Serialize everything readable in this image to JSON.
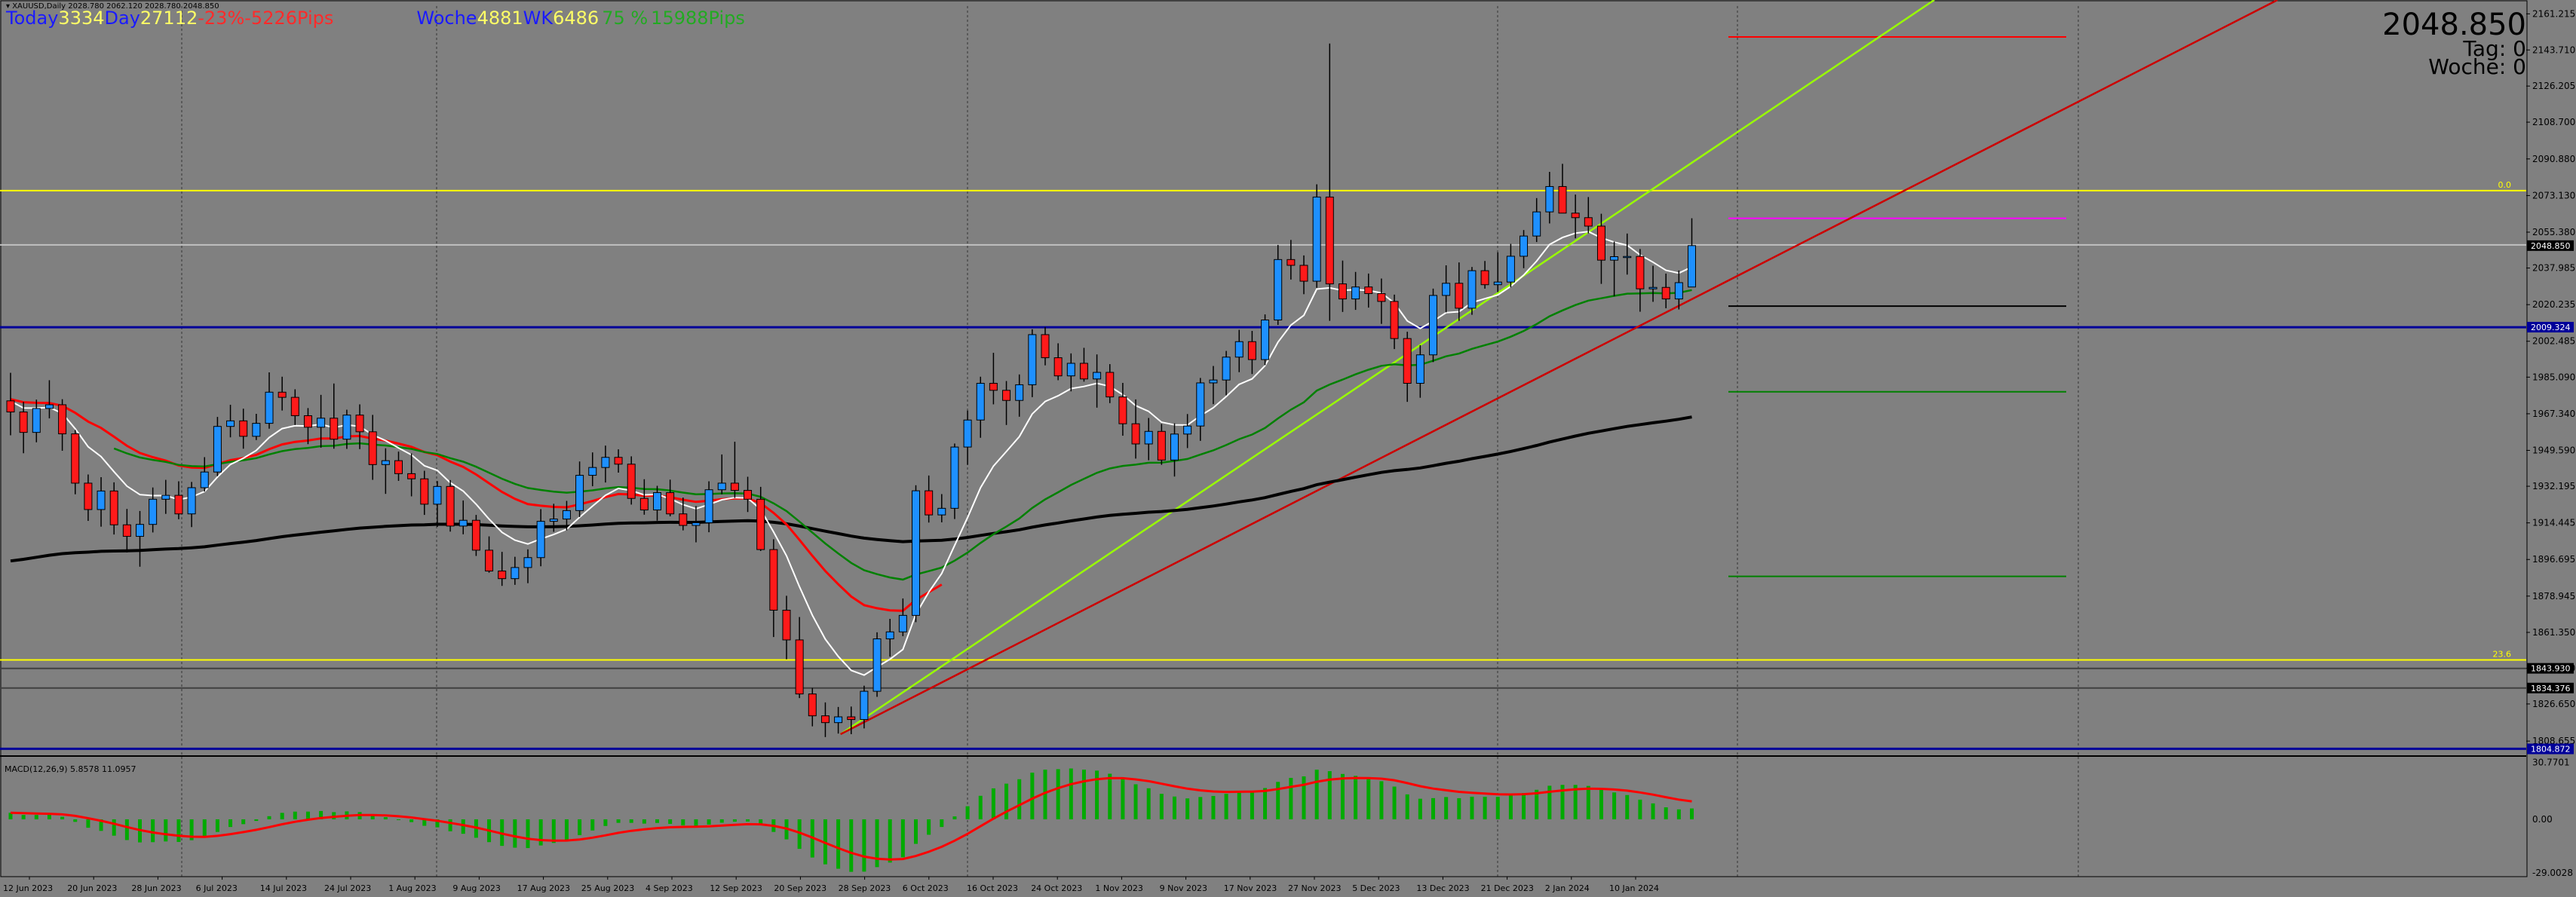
{
  "header": {
    "symbol_line": "▾ XAUUSD,Daily  2028.780 2062.120 2028.780 2048.850",
    "price_display": "2048.850",
    "tag_label": "Tag:",
    "tag_value": "0",
    "woche_label": "Woche:",
    "woche_value": "0",
    "stats": [
      {
        "text": "Today",
        "color": "#1a1aff"
      },
      {
        "text": "3334",
        "color": "#ffff66"
      },
      {
        "text": "Day",
        "color": "#1a1aff"
      },
      {
        "text": "27112",
        "color": "#ffff66"
      },
      {
        "text": "-23%",
        "color": "#ff2a2a"
      },
      {
        "text": "-5226",
        "color": "#ff2a2a"
      },
      {
        "text": "Pips",
        "color": "#ff2a2a"
      },
      {
        "text": "Woche",
        "color": "#1a1aff"
      },
      {
        "text": "4881",
        "color": "#ffff66"
      },
      {
        "text": "WK",
        "color": "#1a1aff"
      },
      {
        "text": "6486",
        "color": "#ffff66"
      },
      {
        "text": "75 %",
        "color": "#22aa22"
      },
      {
        "text": "15988",
        "color": "#22aa22"
      },
      {
        "text": "Pips",
        "color": "#22aa22"
      }
    ]
  },
  "colors": {
    "background": "#808080",
    "bull": "#1e90ff",
    "bear": "#ff1a1a",
    "ema_red": "#ff0000",
    "ema_green": "#008000",
    "ema_white": "#ffffff",
    "sma_black": "#000000",
    "blue_line": "#000099",
    "yellow_line": "#ffff00",
    "trend_lime": "#99ff00",
    "trend_red": "#cc0000",
    "magenta": "#ff00ff"
  },
  "chart_data": {
    "type": "candlestick",
    "symbol": "XAUUSD",
    "timeframe": "Daily",
    "ohlc_last": {
      "open": 2028.78,
      "high": 2062.12,
      "low": 2028.78,
      "close": 2048.85
    },
    "price_axis": {
      "ylim": [
        1802.5,
        2165.0
      ],
      "ticks": [
        "2161.215",
        "2143.710",
        "2126.205",
        "2108.700",
        "2090.880",
        "2073.130",
        "2055.380",
        "2037.985",
        "2020.235",
        "2002.485",
        "1985.090",
        "1967.340",
        "1949.590",
        "1932.195",
        "1914.445",
        "1896.695",
        "1878.945",
        "1861.350",
        "1843.930",
        "1826.650",
        "1808.655"
      ],
      "labels": [
        {
          "price": 2048.85,
          "text": "2048.850",
          "bg": "#000000",
          "fg": "#ffffff"
        },
        {
          "price": 2009.324,
          "text": "2009.324",
          "bg": "#000099",
          "fg": "#ffffff"
        },
        {
          "price": 1843.93,
          "text": "1843.930",
          "bg": "#000000",
          "fg": "#ffffff"
        },
        {
          "price": 1834.376,
          "text": "1834.376",
          "bg": "#000000",
          "fg": "#ffffff"
        },
        {
          "price": 1804.872,
          "text": "1804.872",
          "bg": "#000099",
          "fg": "#ffffff"
        }
      ]
    },
    "date_labels": [
      "12 Jun 2023",
      "20 Jun 2023",
      "28 Jun 2023",
      "6 Jul 2023",
      "14 Jul 2023",
      "24 Jul 2023",
      "1 Aug 2023",
      "9 Aug 2023",
      "17 Aug 2023",
      "25 Aug 2023",
      "4 Sep 2023",
      "12 Sep 2023",
      "20 Sep 2023",
      "28 Sep 2023",
      "6 Oct 2023",
      "16 Oct 2023",
      "24 Oct 2023",
      "1 Nov 2023",
      "9 Nov 2023",
      "17 Nov 2023",
      "27 Nov 2023",
      "5 Dec 2023",
      "13 Dec 2023",
      "21 Dec 2023",
      "2 Jan 2024",
      "10 Jan 2024"
    ],
    "fib_labels": [
      {
        "price": 2075.5,
        "text": "0.0"
      },
      {
        "price": 1848.0,
        "text": "23.6"
      }
    ],
    "horizontal_lines": [
      {
        "price": 2075.5,
        "color": "#ffff00",
        "full": true
      },
      {
        "price": 2049.2,
        "color": "#c0c0c0",
        "full": true
      },
      {
        "price": 2009.3,
        "color": "#000099",
        "full": true
      },
      {
        "price": 1848.0,
        "color": "#ffff00",
        "full": true
      },
      {
        "price": 1843.9,
        "color": "#404040",
        "full": true
      },
      {
        "price": 1834.4,
        "color": "#404040",
        "full": true
      },
      {
        "price": 1804.9,
        "color": "#000099",
        "full": true
      },
      {
        "price": 2150.0,
        "color": "#ff0000",
        "x0": 2292,
        "x1": 2740
      },
      {
        "price": 2062.1,
        "color": "#ff00ff",
        "x0": 2292,
        "x1": 2740
      },
      {
        "price": 2019.5,
        "color": "#000000",
        "x0": 2292,
        "x1": 2740
      },
      {
        "price": 1978.0,
        "color": "#008000",
        "x0": 2292,
        "x1": 2740
      },
      {
        "price": 1888.5,
        "color": "#008000",
        "x0": 2292,
        "x1": 2740
      }
    ],
    "candles": [
      [
        1973.6,
        1987.2,
        1956.9,
        1968.2
      ],
      [
        1968.2,
        1973.1,
        1948.2,
        1958.3
      ],
      [
        1958.3,
        1974.2,
        1953.5,
        1969.9
      ],
      [
        1969.9,
        1983.6,
        1965.1,
        1971.7
      ],
      [
        1971.7,
        1974.4,
        1949.4,
        1957.6
      ],
      [
        1957.6,
        1959.5,
        1928.3,
        1933.7
      ],
      [
        1933.7,
        1937.9,
        1915.4,
        1920.9
      ],
      [
        1920.9,
        1936.6,
        1912.6,
        1929.9
      ],
      [
        1929.9,
        1934.1,
        1908.8,
        1913.5
      ],
      [
        1913.5,
        1921.2,
        1900.1,
        1907.9
      ],
      [
        1907.9,
        1920.2,
        1893.2,
        1913.7
      ],
      [
        1913.7,
        1931.6,
        1909.8,
        1925.9
      ],
      [
        1925.9,
        1935.3,
        1918.8,
        1927.8
      ],
      [
        1927.8,
        1934.6,
        1916.2,
        1918.8
      ],
      [
        1918.8,
        1934.3,
        1912.4,
        1931.5
      ],
      [
        1931.5,
        1946.3,
        1929.6,
        1939.1
      ],
      [
        1939.1,
        1965.8,
        1937.1,
        1961.2
      ],
      [
        1961.2,
        1971.7,
        1955.9,
        1963.9
      ],
      [
        1963.9,
        1969.8,
        1950.4,
        1956.4
      ],
      [
        1956.4,
        1967.3,
        1954.6,
        1962.7
      ],
      [
        1962.7,
        1987.4,
        1960.1,
        1977.8
      ],
      [
        1977.8,
        1985.3,
        1968.9,
        1975.3
      ],
      [
        1975.3,
        1979.2,
        1961.9,
        1966.4
      ],
      [
        1966.4,
        1970.1,
        1952.6,
        1960.8
      ],
      [
        1960.8,
        1976.5,
        1950.9,
        1965.2
      ],
      [
        1965.2,
        1982.0,
        1950.4,
        1955.0
      ],
      [
        1955.0,
        1969.3,
        1950.3,
        1966.7
      ],
      [
        1966.7,
        1971.9,
        1950.2,
        1958.6
      ],
      [
        1958.6,
        1966.8,
        1935.3,
        1942.7
      ],
      [
        1942.7,
        1950.6,
        1928.5,
        1944.6
      ],
      [
        1944.6,
        1949.0,
        1934.8,
        1938.3
      ],
      [
        1938.3,
        1948.1,
        1927.3,
        1935.8
      ],
      [
        1935.8,
        1939.7,
        1918.3,
        1923.5
      ],
      [
        1923.5,
        1934.7,
        1912.5,
        1932.1
      ],
      [
        1932.1,
        1935.2,
        1910.2,
        1912.9
      ],
      [
        1912.9,
        1925.3,
        1908.9,
        1915.7
      ],
      [
        1915.7,
        1918.3,
        1898.4,
        1901.2
      ],
      [
        1901.2,
        1907.9,
        1890.3,
        1891.1
      ],
      [
        1891.1,
        1900.4,
        1883.9,
        1887.4
      ],
      [
        1887.4,
        1898.0,
        1884.4,
        1892.8
      ],
      [
        1892.8,
        1901.6,
        1885.2,
        1897.6
      ],
      [
        1897.6,
        1921.1,
        1893.4,
        1915.2
      ],
      [
        1915.2,
        1923.7,
        1910.1,
        1916.3
      ],
      [
        1916.3,
        1925.1,
        1910.8,
        1920.4
      ],
      [
        1920.4,
        1944.2,
        1917.3,
        1937.5
      ],
      [
        1937.5,
        1948.6,
        1932.2,
        1941.3
      ],
      [
        1941.3,
        1951.9,
        1934.0,
        1946.2
      ],
      [
        1946.2,
        1950.1,
        1938.8,
        1942.9
      ],
      [
        1942.9,
        1946.7,
        1923.3,
        1926.3
      ],
      [
        1926.3,
        1935.6,
        1918.4,
        1920.7
      ],
      [
        1920.7,
        1932.4,
        1915.5,
        1929.1
      ],
      [
        1929.1,
        1935.4,
        1917.6,
        1918.8
      ],
      [
        1918.8,
        1926.7,
        1910.8,
        1913.2
      ],
      [
        1913.2,
        1922.6,
        1905.0,
        1914.5
      ],
      [
        1914.5,
        1934.6,
        1909.9,
        1930.5
      ],
      [
        1930.5,
        1947.6,
        1928.3,
        1933.7
      ],
      [
        1933.7,
        1953.8,
        1926.5,
        1930.2
      ],
      [
        1930.2,
        1936.8,
        1919.7,
        1925.9
      ],
      [
        1925.9,
        1931.9,
        1900.8,
        1901.5
      ],
      [
        1901.5,
        1906.5,
        1859.1,
        1872.1
      ],
      [
        1872.1,
        1879.1,
        1848.3,
        1857.7
      ],
      [
        1857.7,
        1868.8,
        1829.5,
        1831.5
      ],
      [
        1831.5,
        1834.4,
        1815.8,
        1820.9
      ],
      [
        1820.9,
        1827.4,
        1810.6,
        1817.6
      ],
      [
        1817.6,
        1825.2,
        1812.3,
        1820.4
      ],
      [
        1820.4,
        1825.4,
        1812.0,
        1819.1
      ],
      [
        1819.1,
        1835.5,
        1814.8,
        1832.8
      ],
      [
        1832.8,
        1861.4,
        1830.1,
        1858.2
      ],
      [
        1858.2,
        1867.9,
        1849.6,
        1861.6
      ],
      [
        1861.6,
        1877.8,
        1859.5,
        1869.6
      ],
      [
        1869.6,
        1932.7,
        1866.3,
        1930.0
      ],
      [
        1930.0,
        1937.4,
        1914.6,
        1918.3
      ],
      [
        1918.3,
        1928.4,
        1914.7,
        1921.5
      ],
      [
        1921.5,
        1952.9,
        1916.3,
        1951.2
      ],
      [
        1951.2,
        1968.9,
        1942.6,
        1964.3
      ],
      [
        1964.3,
        1985.3,
        1955.7,
        1982.1
      ],
      [
        1982.1,
        1996.9,
        1971.9,
        1978.7
      ],
      [
        1978.7,
        1983.2,
        1961.9,
        1973.8
      ],
      [
        1973.8,
        1986.4,
        1965.9,
        1981.4
      ],
      [
        1981.4,
        2008.3,
        1975.4,
        2005.7
      ],
      [
        2005.7,
        2009.4,
        1990.8,
        1994.5
      ],
      [
        1994.5,
        2001.5,
        1983.6,
        1985.7
      ],
      [
        1985.7,
        1996.6,
        1978.2,
        1991.8
      ],
      [
        1991.8,
        1999.3,
        1982.9,
        1984.2
      ],
      [
        1984.2,
        1996.1,
        1970.3,
        1987.4
      ],
      [
        1987.4,
        1991.4,
        1972.5,
        1975.5
      ],
      [
        1975.5,
        1982.3,
        1956.7,
        1962.5
      ],
      [
        1962.5,
        1974.3,
        1945.6,
        1952.7
      ],
      [
        1952.7,
        1965.3,
        1944.8,
        1958.8
      ],
      [
        1958.8,
        1962.4,
        1942.6,
        1944.9
      ],
      [
        1944.9,
        1962.7,
        1936.9,
        1957.5
      ],
      [
        1957.5,
        1967.2,
        1950.7,
        1961.4
      ],
      [
        1961.4,
        1984.7,
        1954.2,
        1982.3
      ],
      [
        1982.3,
        1990.5,
        1972.0,
        1983.7
      ],
      [
        1983.7,
        1997.8,
        1976.3,
        1994.8
      ],
      [
        1994.8,
        2008.0,
        1987.5,
        2002.3
      ],
      [
        2002.3,
        2007.5,
        1986.6,
        1993.6
      ],
      [
        1993.6,
        2015.5,
        1990.9,
        2012.8
      ],
      [
        2012.8,
        2049.2,
        2010.4,
        2042.1
      ],
      [
        2042.1,
        2051.6,
        2032.4,
        2039.3
      ],
      [
        2039.3,
        2044.1,
        2025.3,
        2031.6
      ],
      [
        2031.6,
        2078.6,
        2028.4,
        2072.4
      ],
      [
        2072.4,
        2146.8,
        2012.4,
        2030.3
      ],
      [
        2030.3,
        2041.6,
        2016.7,
        2023.0
      ],
      [
        2023.0,
        2036.1,
        2017.7,
        2028.8
      ],
      [
        2028.8,
        2035.3,
        2018.8,
        2025.6
      ],
      [
        2025.6,
        2032.9,
        2010.9,
        2021.8
      ],
      [
        2021.8,
        2025.1,
        1998.7,
        2003.8
      ],
      [
        2003.8,
        2007.1,
        1973.1,
        1982.1
      ],
      [
        1982.1,
        2000.6,
        1975.1,
        1995.9
      ],
      [
        1995.9,
        2028.0,
        1992.4,
        2024.7
      ],
      [
        2024.7,
        2039.3,
        2016.5,
        2030.6
      ],
      [
        2030.6,
        2040.7,
        2012.4,
        2018.5
      ],
      [
        2018.5,
        2038.5,
        2015.3,
        2036.7
      ],
      [
        2036.7,
        2041.4,
        2028.0,
        2029.9
      ],
      [
        2029.9,
        2045.6,
        2026.3,
        2031.2
      ],
      [
        2031.2,
        2049.7,
        2028.6,
        2043.7
      ],
      [
        2043.7,
        2056.4,
        2037.9,
        2053.5
      ],
      [
        2053.5,
        2071.9,
        2050.6,
        2065.2
      ],
      [
        2065.2,
        2084.6,
        2059.6,
        2077.5
      ],
      [
        2077.5,
        2088.5,
        2064.5,
        2064.6
      ],
      [
        2064.6,
        2073.6,
        2052.4,
        2062.4
      ],
      [
        2062.4,
        2072.4,
        2054.8,
        2058.3
      ],
      [
        2058.3,
        2064.3,
        2030.3,
        2041.8
      ],
      [
        2041.8,
        2050.8,
        2024.3,
        2043.5
      ],
      [
        2043.5,
        2054.7,
        2034.8,
        2043.6
      ],
      [
        2043.6,
        2047.2,
        2016.8,
        2027.9
      ],
      [
        2027.9,
        2039.1,
        2021.6,
        2028.6
      ],
      [
        2028.6,
        2035.3,
        2018.5,
        2023.0
      ],
      [
        2023.0,
        2036.8,
        2017.9,
        2030.9
      ],
      [
        2028.78,
        2062.12,
        2028.78,
        2048.85
      ]
    ],
    "macd": {
      "label": "MACD(12,26,9) 5.8578 11.0957",
      "axis_ticks": [
        "30.7701",
        "0.00",
        "-29.0028"
      ],
      "ylim": [
        -31,
        33
      ]
    }
  }
}
